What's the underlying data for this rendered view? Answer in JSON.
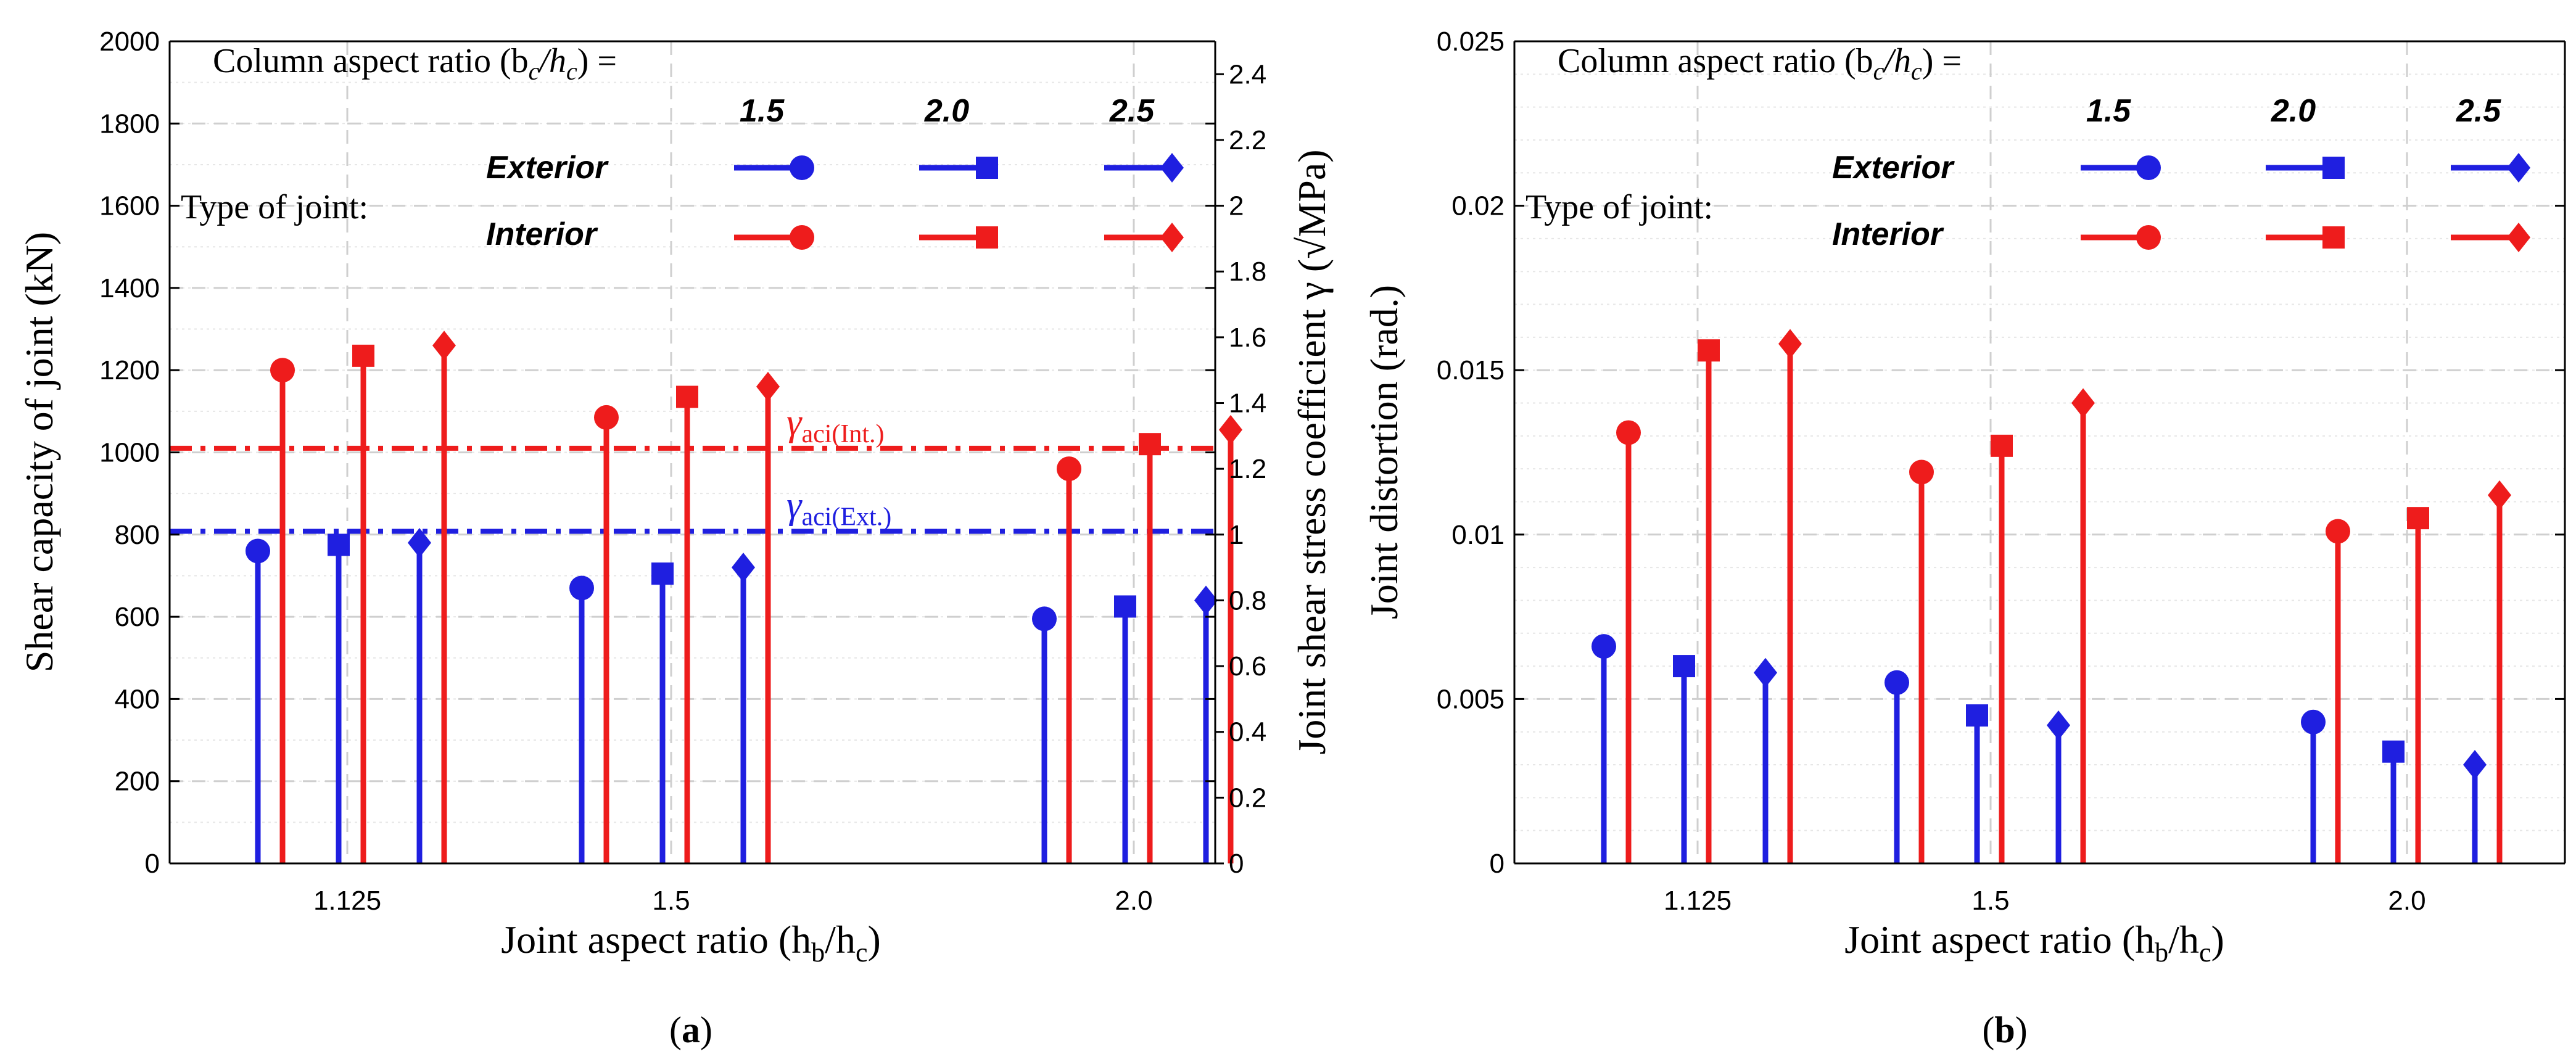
{
  "colors": {
    "exterior": "#1f1fe0",
    "interior": "#ee1c1c",
    "grid": "#d9d9d9",
    "axis": "#000000"
  },
  "figure_labels": {
    "a_open": "(",
    "a": "a",
    "a_close": ")",
    "b_open": "(",
    "b": "b",
    "b_close": ")"
  },
  "legend": {
    "title": "Column aspect ratio (b",
    "title_sub1": "c",
    "title_mid": "/h",
    "title_sub2": "c",
    "title_end": ") =",
    "type_label": "Type of joint:",
    "ratios": [
      "1.5",
      "2.0",
      "2.5"
    ],
    "exterior_label": "Exterior",
    "interior_label": "Interior",
    "markers": [
      "circle-icon",
      "square-icon",
      "diamond-icon"
    ]
  },
  "chart_data": [
    {
      "id": "a",
      "type": "stem",
      "xlabel": "Joint aspect ratio  (h",
      "xlabel_sub": "b",
      "xlabel_mid": "/h",
      "xlabel_sub2": "c",
      "xlabel_end": ")",
      "ylabel": "Shear capacity of joint  (kN)",
      "y2label": "Joint shear stress coefficient γ  (√MPa)",
      "ylim": [
        0,
        2000
      ],
      "yticks": [
        0,
        200,
        400,
        600,
        800,
        1000,
        1200,
        1400,
        1600,
        1800,
        2000
      ],
      "y2lim": [
        0,
        2.5
      ],
      "y2ticks": [
        "0",
        "0.2",
        "0.4",
        "0.6",
        "0.8",
        "1",
        "1.2",
        "1.4",
        "1.6",
        "1.8",
        "2",
        "2.2",
        "2.4"
      ],
      "categories": [
        "1.125",
        "1.5",
        "2.0"
      ],
      "series": [
        {
          "name": "Exterior 1.5",
          "joint": "exterior",
          "marker": "circle",
          "values": [
            760,
            670,
            595
          ]
        },
        {
          "name": "Interior 1.5",
          "joint": "interior",
          "marker": "circle",
          "values": [
            1200,
            1085,
            960
          ]
        },
        {
          "name": "Exterior 2.0",
          "joint": "exterior",
          "marker": "square",
          "values": [
            775,
            705,
            625
          ]
        },
        {
          "name": "Interior 2.0",
          "joint": "interior",
          "marker": "square",
          "values": [
            1235,
            1135,
            1020
          ]
        },
        {
          "name": "Exterior 2.5",
          "joint": "exterior",
          "marker": "diamond",
          "values": [
            780,
            720,
            640
          ]
        },
        {
          "name": "Interior 2.5",
          "joint": "interior",
          "marker": "diamond",
          "values": [
            1260,
            1160,
            1055
          ]
        }
      ],
      "reference_lines": [
        {
          "label": "γ",
          "sub": "aci(Int.)",
          "value": 1010,
          "joint": "interior"
        },
        {
          "label": "γ",
          "sub": "aci(Ext.)",
          "value": 808,
          "joint": "exterior"
        }
      ]
    },
    {
      "id": "b",
      "type": "stem",
      "xlabel": "Joint aspect ratio  (h",
      "xlabel_sub": "b",
      "xlabel_mid": "/h",
      "xlabel_sub2": "c",
      "xlabel_end": ")",
      "ylabel": "Joint distortion  (rad.)",
      "ylim": [
        0,
        0.025
      ],
      "yticks": [
        "0",
        "0.005",
        "0.01",
        "0.015",
        "0.02",
        "0.025"
      ],
      "categories": [
        "1.125",
        "1.5",
        "2.0"
      ],
      "series": [
        {
          "name": "Exterior 1.5",
          "joint": "exterior",
          "marker": "circle",
          "values": [
            0.0066,
            0.0055,
            0.0043
          ]
        },
        {
          "name": "Interior 1.5",
          "joint": "interior",
          "marker": "circle",
          "values": [
            0.0131,
            0.0119,
            0.0101
          ]
        },
        {
          "name": "Exterior 2.0",
          "joint": "exterior",
          "marker": "square",
          "values": [
            0.006,
            0.0045,
            0.0034
          ]
        },
        {
          "name": "Interior 2.0",
          "joint": "interior",
          "marker": "square",
          "values": [
            0.0156,
            0.0127,
            0.0105
          ]
        },
        {
          "name": "Exterior 2.5",
          "joint": "exterior",
          "marker": "diamond",
          "values": [
            0.0058,
            0.0042,
            0.003
          ]
        },
        {
          "name": "Interior 2.5",
          "joint": "interior",
          "marker": "diamond",
          "values": [
            0.0158,
            0.014,
            0.0112
          ]
        }
      ]
    }
  ]
}
